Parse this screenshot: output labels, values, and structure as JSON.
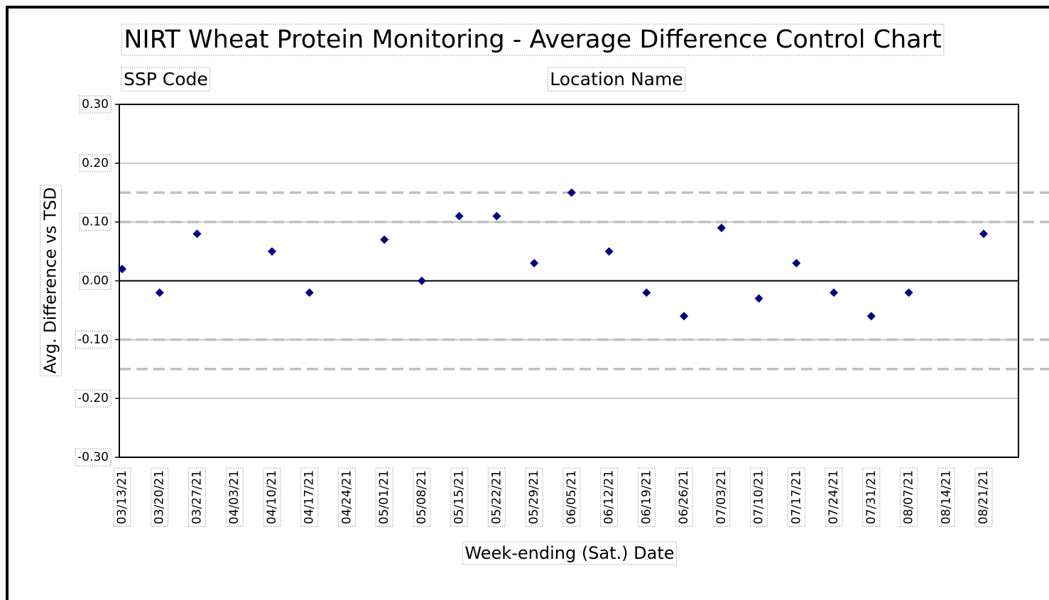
{
  "chart_data": {
    "type": "scatter",
    "title": "NIRT Wheat Protein Monitoring - Average Difference Control Chart",
    "subtitle_left": "SSP Code",
    "subtitle_right": "Location Name",
    "x_label": "Week-ending (Sat.) Date",
    "y_label": "Avg. Difference vs TSD",
    "categories": [
      "03/13/21",
      "03/20/21",
      "03/27/21",
      "04/03/21",
      "04/10/21",
      "04/17/21",
      "04/24/21",
      "05/01/21",
      "05/08/21",
      "05/15/21",
      "05/22/21",
      "05/29/21",
      "06/05/21",
      "06/12/21",
      "06/19/21",
      "06/26/21",
      "07/03/21",
      "07/10/21",
      "07/17/21",
      "07/24/21",
      "07/31/21",
      "08/07/21",
      "08/14/21",
      "08/21/21"
    ],
    "values": [
      0.02,
      -0.02,
      0.08,
      null,
      0.05,
      -0.02,
      null,
      0.07,
      0.0,
      0.11,
      0.11,
      0.03,
      0.15,
      0.05,
      -0.02,
      -0.06,
      0.09,
      -0.03,
      0.03,
      -0.02,
      -0.06,
      -0.02,
      null,
      0.08
    ],
    "color": "#00007f",
    "control_limits": [
      0.15,
      0.1,
      -0.1,
      -0.15
    ],
    "ylim": [
      -0.3,
      0.3
    ],
    "yticks": [
      {
        "value": 0.3,
        "label": "0.30"
      },
      {
        "value": 0.2,
        "label": "0.20"
      },
      {
        "value": 0.1,
        "label": "0.10"
      },
      {
        "value": 0,
        "label": "0.00"
      },
      {
        "value": -0.1,
        "label": "-0.10"
      },
      {
        "value": -0.2,
        "label": "-0.20"
      },
      {
        "value": -0.3,
        "label": "-0.30"
      }
    ],
    "grid": true
  }
}
